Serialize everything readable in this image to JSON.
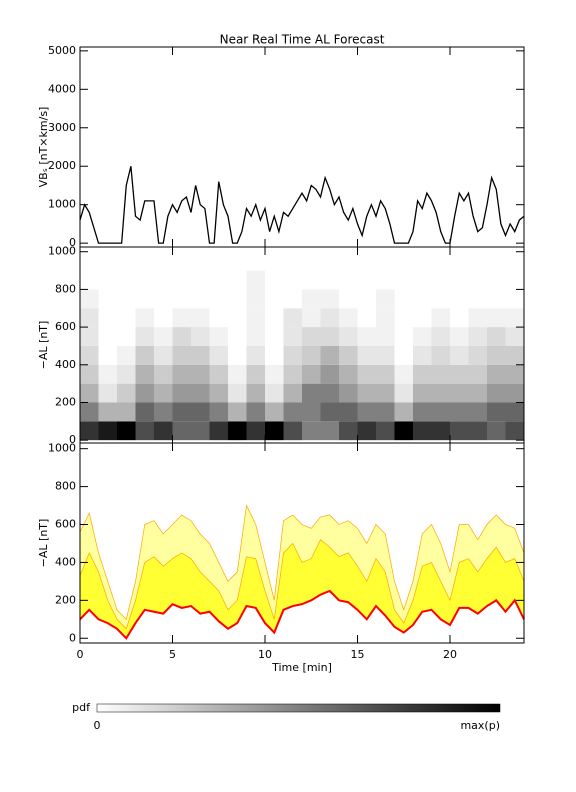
{
  "chart_data": [
    {
      "type": "line",
      "title": "Near Real Time AL Forecast",
      "ylabel": "VBₛ [nT×km/s]",
      "xlim": [
        0,
        24
      ],
      "ylim": [
        -100,
        5100
      ],
      "yticks": [
        0,
        1000,
        2000,
        3000,
        4000,
        5000
      ],
      "x": [
        0,
        0.25,
        0.5,
        0.75,
        1,
        1.25,
        1.5,
        1.75,
        2,
        2.25,
        2.5,
        2.75,
        3,
        3.25,
        3.5,
        3.75,
        4,
        4.25,
        4.5,
        4.75,
        5,
        5.25,
        5.5,
        5.75,
        6,
        6.25,
        6.5,
        6.75,
        7,
        7.25,
        7.5,
        7.75,
        8,
        8.25,
        8.5,
        8.75,
        9,
        9.25,
        9.5,
        9.75,
        10,
        10.25,
        10.5,
        10.75,
        11,
        11.25,
        11.5,
        11.75,
        12,
        12.25,
        12.5,
        12.75,
        13,
        13.25,
        13.5,
        13.75,
        14,
        14.25,
        14.5,
        14.75,
        15,
        15.25,
        15.5,
        15.75,
        16,
        16.25,
        16.5,
        16.75,
        17,
        17.25,
        17.5,
        17.75,
        18,
        18.25,
        18.5,
        18.75,
        19,
        19.25,
        19.5,
        19.75,
        20,
        20.25,
        20.5,
        20.75,
        21,
        21.25,
        21.5,
        21.75,
        22,
        22.25,
        22.5,
        22.75,
        23,
        23.25,
        23.5,
        23.75,
        24
      ],
      "series": [
        {
          "color": "#000000",
          "values": [
            600,
            1000,
            800,
            400,
            0,
            0,
            0,
            0,
            0,
            0,
            1500,
            2000,
            700,
            600,
            1100,
            1100,
            1100,
            0,
            0,
            700,
            1000,
            800,
            1100,
            1200,
            800,
            1500,
            1000,
            900,
            0,
            0,
            1600,
            1000,
            700,
            0,
            0,
            300,
            900,
            700,
            1000,
            600,
            900,
            300,
            700,
            300,
            800,
            700,
            900,
            1100,
            1300,
            1100,
            1500,
            1400,
            1200,
            1700,
            1400,
            1000,
            1200,
            800,
            600,
            900,
            500,
            200,
            700,
            1000,
            700,
            1100,
            900,
            500,
            0,
            0,
            0,
            0,
            300,
            1100,
            900,
            1300,
            1100,
            800,
            300,
            0,
            0,
            700,
            1300,
            1100,
            1300,
            700,
            300,
            400,
            1000,
            1700,
            1400,
            500,
            200,
            500,
            300,
            600,
            700
          ]
        }
      ]
    },
    {
      "type": "heatmap",
      "ylabel": "−AL [nT]",
      "xlim": [
        0,
        24
      ],
      "ylim": [
        -15,
        1025
      ],
      "yticks": [
        0,
        200,
        400,
        600,
        800,
        1000
      ],
      "xbins": [
        0,
        1,
        2,
        3,
        4,
        5,
        6,
        7,
        8,
        9,
        10,
        11,
        12,
        13,
        14,
        15,
        16,
        17,
        18,
        19,
        20,
        21,
        22,
        23,
        24
      ],
      "ybins": [
        0,
        100,
        200,
        300,
        400,
        500,
        600,
        700,
        800,
        900,
        1000
      ],
      "z": [
        [
          0.8,
          0.9,
          1.0,
          0.7,
          0.8,
          0.6,
          0.6,
          0.8,
          1.0,
          0.8,
          1.0,
          0.7,
          0.5,
          0.5,
          0.7,
          0.8,
          0.7,
          1.0,
          0.8,
          0.8,
          0.7,
          0.7,
          0.6,
          0.7
        ],
        [
          0.5,
          0.3,
          0.3,
          0.6,
          0.5,
          0.6,
          0.6,
          0.5,
          0.3,
          0.5,
          0.3,
          0.5,
          0.5,
          0.6,
          0.6,
          0.5,
          0.5,
          0.3,
          0.5,
          0.5,
          0.5,
          0.5,
          0.6,
          0.6
        ],
        [
          0.3,
          0.1,
          0.2,
          0.4,
          0.3,
          0.4,
          0.4,
          0.3,
          0.1,
          0.3,
          0.1,
          0.3,
          0.5,
          0.5,
          0.4,
          0.3,
          0.3,
          0.1,
          0.3,
          0.3,
          0.3,
          0.3,
          0.4,
          0.4
        ],
        [
          0.2,
          0.05,
          0.1,
          0.3,
          0.2,
          0.3,
          0.3,
          0.2,
          0.05,
          0.2,
          0.05,
          0.2,
          0.3,
          0.4,
          0.3,
          0.2,
          0.2,
          0.05,
          0.2,
          0.2,
          0.2,
          0.2,
          0.3,
          0.3
        ],
        [
          0.15,
          0,
          0.05,
          0.2,
          0.1,
          0.2,
          0.2,
          0.1,
          0,
          0.1,
          0,
          0.15,
          0.2,
          0.3,
          0.2,
          0.1,
          0.1,
          0,
          0.1,
          0.15,
          0.1,
          0.15,
          0.2,
          0.2
        ],
        [
          0.1,
          0,
          0,
          0.1,
          0.05,
          0.15,
          0.1,
          0.05,
          0,
          0.05,
          0,
          0.1,
          0.15,
          0.15,
          0.1,
          0.05,
          0.05,
          0,
          0.05,
          0.1,
          0.05,
          0.1,
          0.15,
          0.1
        ],
        [
          0.1,
          0,
          0,
          0.05,
          0,
          0.05,
          0.05,
          0,
          0,
          0.05,
          0,
          0.1,
          0.05,
          0.1,
          0.05,
          0,
          0.05,
          0,
          0,
          0.05,
          0,
          0.05,
          0.05,
          0.05
        ],
        [
          0.05,
          0,
          0,
          0,
          0,
          0,
          0,
          0,
          0,
          0.05,
          0,
          0,
          0.05,
          0.05,
          0,
          0,
          0.05,
          0,
          0,
          0,
          0,
          0,
          0,
          0
        ],
        [
          0,
          0,
          0,
          0,
          0,
          0,
          0,
          0,
          0,
          0.05,
          0,
          0,
          0,
          0,
          0,
          0,
          0,
          0,
          0,
          0,
          0,
          0,
          0,
          0
        ],
        [
          0,
          0,
          0,
          0,
          0,
          0,
          0,
          0,
          0,
          0,
          0,
          0,
          0,
          0,
          0,
          0,
          0,
          0,
          0,
          0,
          0,
          0,
          0,
          0
        ]
      ],
      "colorbar": {
        "label": "pdf",
        "min_label": "0",
        "max_label": "max(p)"
      }
    },
    {
      "type": "band",
      "ylabel": "−AL [nT]",
      "xlabel": "Time [min]",
      "xlim": [
        0,
        24
      ],
      "ylim": [
        -25,
        1030
      ],
      "yticks": [
        0,
        200,
        400,
        600,
        800,
        1000
      ],
      "xticks": [
        0,
        5,
        10,
        15,
        20
      ],
      "x": [
        0,
        0.5,
        1,
        1.5,
        2,
        2.5,
        3,
        3.5,
        4,
        4.5,
        5,
        5.5,
        6,
        6.5,
        7,
        7.5,
        8,
        8.5,
        9,
        9.5,
        10,
        10.5,
        11,
        11.5,
        12,
        12.5,
        13,
        13.5,
        14,
        14.5,
        15,
        15.5,
        16,
        16.5,
        17,
        17.5,
        18,
        18.5,
        19,
        19.5,
        20,
        20.5,
        21,
        21.5,
        22,
        22.5,
        23,
        23.5,
        24
      ],
      "series": [
        {
          "color": "#ffffa0",
          "values": [
            560,
            660,
            450,
            300,
            150,
            100,
            300,
            600,
            620,
            550,
            600,
            650,
            620,
            550,
            500,
            400,
            300,
            350,
            700,
            600,
            400,
            200,
            620,
            650,
            600,
            580,
            640,
            650,
            600,
            620,
            580,
            500,
            600,
            550,
            300,
            150,
            300,
            550,
            600,
            500,
            350,
            600,
            600,
            520,
            600,
            650,
            600,
            580,
            450
          ]
        },
        {
          "color": "#ffff33",
          "values": [
            330,
            450,
            350,
            200,
            100,
            50,
            200,
            400,
            430,
            380,
            420,
            450,
            420,
            350,
            300,
            250,
            150,
            200,
            430,
            420,
            250,
            100,
            450,
            500,
            400,
            420,
            520,
            480,
            430,
            450,
            380,
            300,
            420,
            350,
            150,
            80,
            200,
            380,
            400,
            300,
            200,
            400,
            420,
            350,
            420,
            480,
            400,
            420,
            300
          ]
        },
        {
          "color": "#ff0000",
          "values": [
            100,
            150,
            100,
            80,
            50,
            0,
            80,
            150,
            140,
            130,
            180,
            160,
            170,
            130,
            140,
            90,
            50,
            80,
            170,
            160,
            80,
            30,
            150,
            170,
            180,
            200,
            230,
            250,
            200,
            190,
            150,
            100,
            170,
            120,
            60,
            30,
            70,
            140,
            150,
            100,
            70,
            160,
            160,
            130,
            170,
            200,
            140,
            200,
            100
          ]
        }
      ]
    }
  ]
}
